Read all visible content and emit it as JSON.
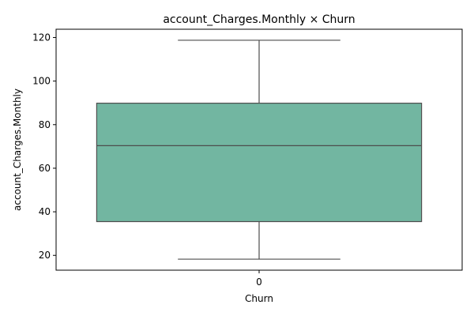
{
  "chart_data": {
    "type": "box",
    "title": "account_Charges.Monthly × Churn",
    "xlabel": "Churn",
    "ylabel": "account_Charges.Monthly",
    "categories": [
      "0"
    ],
    "boxes": [
      {
        "category": "0",
        "whisker_low": 18.25,
        "q1": 35.5,
        "median": 70.35,
        "q3": 89.85,
        "whisker_high": 118.75
      }
    ],
    "ylim": [
      13.2,
      123.8
    ],
    "yticks": [
      20,
      40,
      60,
      80,
      100,
      120
    ],
    "grid": false,
    "colors": {
      "box_fill": "#72b6a1",
      "line": "#4d4d4d",
      "axes": "#000000"
    }
  }
}
